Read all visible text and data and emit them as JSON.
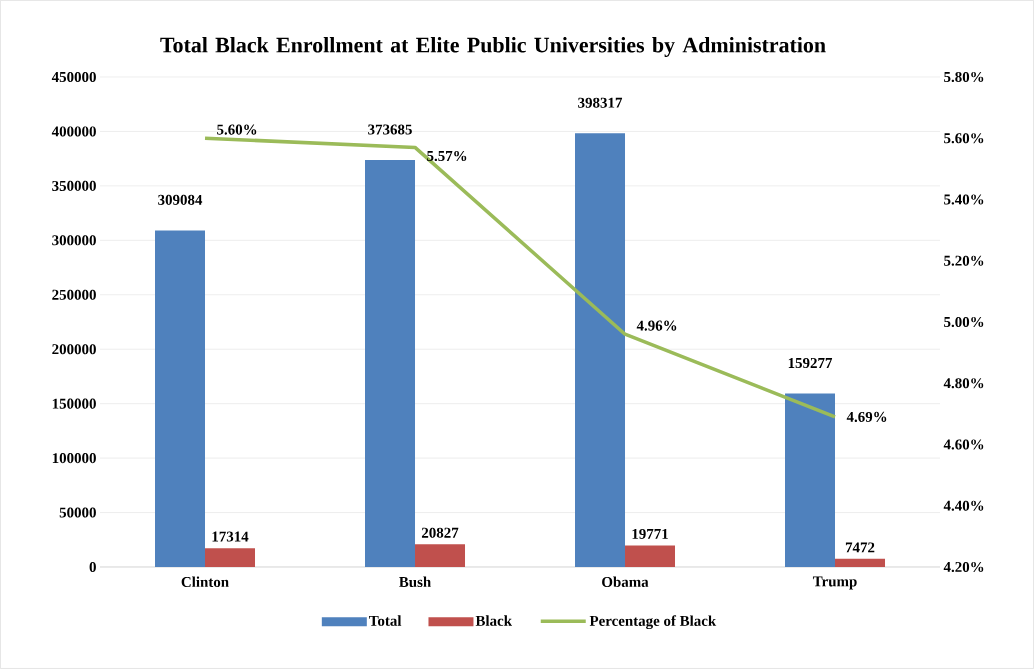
{
  "chart_data": {
    "type": "bar",
    "title": "Total Black Enrollment at Elite Public Universities by Administration",
    "categories": [
      "Clinton",
      "Bush",
      "Obama",
      "Trump"
    ],
    "series": [
      {
        "name": "Total",
        "color": "#4f81bd",
        "values": [
          309084,
          373685,
          398317,
          159277
        ],
        "value_labels": [
          "309084",
          "373685",
          "398317",
          "159277"
        ]
      },
      {
        "name": "Black",
        "color": "#c0504d",
        "values": [
          17314,
          20827,
          19771,
          7472
        ],
        "value_labels": [
          "17314",
          "20827",
          "19771",
          "7472"
        ]
      },
      {
        "name": "Percentage of Black",
        "type": "line",
        "axis": "y2",
        "color": "#9bbb59",
        "values": [
          5.6,
          5.57,
          4.96,
          4.69
        ],
        "value_labels": [
          "5.60%",
          "5.57%",
          "4.96%",
          "4.69%"
        ]
      }
    ],
    "ylim": [
      0,
      450000
    ],
    "yticks": [
      0,
      50000,
      100000,
      150000,
      200000,
      250000,
      300000,
      350000,
      400000,
      450000
    ],
    "y2lim": [
      4.2,
      5.8
    ],
    "y2ticks": [
      {
        "value": 4.2,
        "label": "4.20%"
      },
      {
        "value": 4.4,
        "label": "4.40%"
      },
      {
        "value": 4.6,
        "label": "4.60%"
      },
      {
        "value": 4.8,
        "label": "4.80%"
      },
      {
        "value": 5.0,
        "label": "5.00%"
      },
      {
        "value": 5.2,
        "label": "5.20%"
      },
      {
        "value": 5.4,
        "label": "5.40%"
      },
      {
        "value": 5.6,
        "label": "5.60%"
      },
      {
        "value": 5.8,
        "label": "5.80%"
      }
    ],
    "grid": "y",
    "legend": "bottom",
    "marker": "none",
    "line_style": "solid"
  }
}
